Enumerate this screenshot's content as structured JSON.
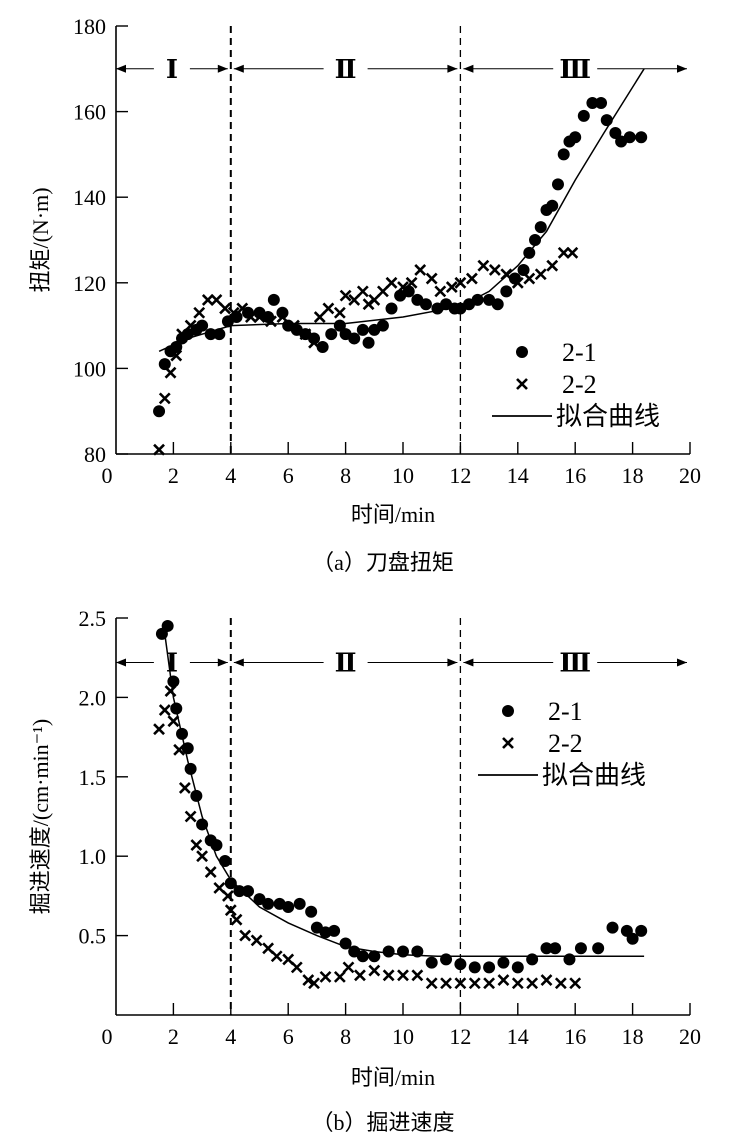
{
  "chart_data": [
    {
      "type": "scatter",
      "title": "",
      "caption": "（a）刀盘扭矩",
      "xlabel": "时间/min",
      "ylabel": "扭矩/(N·m)",
      "xlim": [
        0,
        20
      ],
      "ylim": [
        80,
        180
      ],
      "xticks": [
        "0",
        "2",
        "4",
        "6",
        "8",
        "10",
        "12",
        "14",
        "16",
        "18",
        "20"
      ],
      "yticks": [
        "80",
        "100",
        "120",
        "140",
        "160",
        "180"
      ],
      "grid": false,
      "legend_position": "bottom-right",
      "stages": {
        "boundaries": [
          4,
          12
        ],
        "labels": [
          "Ⅰ",
          "Ⅱ",
          "Ⅲ"
        ],
        "level": 170
      },
      "series": [
        {
          "name": "2-1",
          "marker": "circle",
          "points": [
            [
              1.5,
              90
            ],
            [
              1.7,
              101
            ],
            [
              1.9,
              104
            ],
            [
              2.1,
              105
            ],
            [
              2.3,
              107
            ],
            [
              2.5,
              108
            ],
            [
              2.8,
              109
            ],
            [
              3.0,
              110
            ],
            [
              3.3,
              108
            ],
            [
              3.6,
              108
            ],
            [
              3.9,
              111
            ],
            [
              4.2,
              112
            ],
            [
              4.6,
              113
            ],
            [
              5.0,
              113
            ],
            [
              5.3,
              112
            ],
            [
              5.5,
              116
            ],
            [
              5.8,
              113
            ],
            [
              6.0,
              110
            ],
            [
              6.3,
              109
            ],
            [
              6.6,
              108
            ],
            [
              6.9,
              107
            ],
            [
              7.2,
              105
            ],
            [
              7.5,
              108
            ],
            [
              7.8,
              110
            ],
            [
              8.0,
              108
            ],
            [
              8.3,
              107
            ],
            [
              8.6,
              109
            ],
            [
              8.8,
              106
            ],
            [
              9.0,
              109
            ],
            [
              9.3,
              110
            ],
            [
              9.6,
              114
            ],
            [
              9.9,
              117
            ],
            [
              10.2,
              118
            ],
            [
              10.5,
              116
            ],
            [
              10.8,
              115
            ],
            [
              11.2,
              114
            ],
            [
              11.5,
              115
            ],
            [
              11.8,
              114
            ],
            [
              12.0,
              114
            ],
            [
              12.3,
              115
            ],
            [
              12.6,
              116
            ],
            [
              13.0,
              116
            ],
            [
              13.3,
              115
            ],
            [
              13.6,
              118
            ],
            [
              13.9,
              121
            ],
            [
              14.2,
              123
            ],
            [
              14.4,
              127
            ],
            [
              14.6,
              130
            ],
            [
              14.8,
              133
            ],
            [
              15.0,
              137
            ],
            [
              15.2,
              138
            ],
            [
              15.4,
              143
            ],
            [
              15.6,
              150
            ],
            [
              15.8,
              153
            ],
            [
              16.0,
              154
            ],
            [
              16.3,
              159
            ],
            [
              16.6,
              162
            ],
            [
              16.9,
              162
            ],
            [
              17.1,
              158
            ],
            [
              17.4,
              155
            ],
            [
              17.6,
              153
            ],
            [
              17.9,
              154
            ],
            [
              18.3,
              154
            ]
          ]
        },
        {
          "name": "2-2",
          "marker": "x",
          "points": [
            [
              1.5,
              81
            ],
            [
              1.7,
              93
            ],
            [
              1.9,
              99
            ],
            [
              2.1,
              103
            ],
            [
              2.3,
              108
            ],
            [
              2.6,
              110
            ],
            [
              2.9,
              113
            ],
            [
              3.2,
              116
            ],
            [
              3.5,
              116
            ],
            [
              3.8,
              114
            ],
            [
              4.1,
              113
            ],
            [
              4.4,
              114
            ],
            [
              4.7,
              112
            ],
            [
              5.0,
              112
            ],
            [
              5.4,
              111
            ],
            [
              5.8,
              112
            ],
            [
              6.2,
              110
            ],
            [
              6.6,
              108
            ],
            [
              6.9,
              106
            ],
            [
              7.1,
              112
            ],
            [
              7.4,
              114
            ],
            [
              7.8,
              113
            ],
            [
              8.0,
              117
            ],
            [
              8.3,
              116
            ],
            [
              8.6,
              118
            ],
            [
              8.8,
              115
            ],
            [
              9.0,
              116
            ],
            [
              9.3,
              118
            ],
            [
              9.6,
              120
            ],
            [
              10.0,
              119
            ],
            [
              10.3,
              120
            ],
            [
              10.6,
              123
            ],
            [
              11.0,
              121
            ],
            [
              11.3,
              118
            ],
            [
              11.7,
              119
            ],
            [
              12.0,
              120
            ],
            [
              12.4,
              121
            ],
            [
              12.8,
              124
            ],
            [
              13.2,
              123
            ],
            [
              13.6,
              122
            ],
            [
              14.0,
              120
            ],
            [
              14.4,
              121
            ],
            [
              14.8,
              122
            ],
            [
              15.2,
              124
            ],
            [
              15.6,
              127
            ],
            [
              15.9,
              127
            ]
          ]
        },
        {
          "name": "拟合曲线",
          "marker": "line",
          "points": [
            [
              1.5,
              104
            ],
            [
              2.5,
              107
            ],
            [
              4,
              110
            ],
            [
              6,
              110.5
            ],
            [
              8,
              110.5
            ],
            [
              10,
              112
            ],
            [
              12,
              114.5
            ],
            [
              13,
              118
            ],
            [
              14,
              124
            ],
            [
              15,
              132
            ],
            [
              16,
              144
            ],
            [
              17,
              155
            ],
            [
              18.4,
              170
            ]
          ]
        }
      ]
    },
    {
      "type": "scatter",
      "title": "",
      "caption": "（b）掘进速度",
      "xlabel": "时间/min",
      "ylabel": "掘进速度/(cm·min⁻¹)",
      "xlim": [
        0,
        20
      ],
      "ylim": [
        0,
        2.5
      ],
      "xticks": [
        "0",
        "2",
        "4",
        "6",
        "8",
        "10",
        "12",
        "14",
        "16",
        "18",
        "20"
      ],
      "yticks": [
        "0.5",
        "1.0",
        "1.5",
        "2.0",
        "2.5"
      ],
      "grid": false,
      "legend_position": "top-right",
      "stages": {
        "boundaries": [
          4,
          12
        ],
        "labels": [
          "Ⅰ",
          "Ⅱ",
          "Ⅲ"
        ],
        "level": 2.22
      },
      "series": [
        {
          "name": "2-1",
          "marker": "circle",
          "points": [
            [
              1.6,
              2.4
            ],
            [
              1.8,
              2.45
            ],
            [
              2.0,
              2.1
            ],
            [
              2.1,
              1.93
            ],
            [
              2.3,
              1.77
            ],
            [
              2.5,
              1.68
            ],
            [
              2.6,
              1.55
            ],
            [
              2.8,
              1.38
            ],
            [
              3.0,
              1.2
            ],
            [
              3.3,
              1.1
            ],
            [
              3.5,
              1.07
            ],
            [
              3.8,
              0.97
            ],
            [
              4.0,
              0.83
            ],
            [
              4.3,
              0.78
            ],
            [
              4.6,
              0.78
            ],
            [
              5.0,
              0.73
            ],
            [
              5.3,
              0.7
            ],
            [
              5.7,
              0.7
            ],
            [
              6.0,
              0.68
            ],
            [
              6.4,
              0.7
            ],
            [
              6.8,
              0.65
            ],
            [
              7.0,
              0.55
            ],
            [
              7.3,
              0.52
            ],
            [
              7.6,
              0.53
            ],
            [
              8.0,
              0.45
            ],
            [
              8.3,
              0.4
            ],
            [
              8.6,
              0.37
            ],
            [
              9.0,
              0.37
            ],
            [
              9.5,
              0.4
            ],
            [
              10.0,
              0.4
            ],
            [
              10.5,
              0.4
            ],
            [
              11.0,
              0.33
            ],
            [
              11.5,
              0.35
            ],
            [
              12.0,
              0.32
            ],
            [
              12.5,
              0.3
            ],
            [
              13.0,
              0.3
            ],
            [
              13.5,
              0.33
            ],
            [
              14.0,
              0.3
            ],
            [
              14.5,
              0.35
            ],
            [
              15.0,
              0.42
            ],
            [
              15.3,
              0.42
            ],
            [
              15.8,
              0.35
            ],
            [
              16.2,
              0.42
            ],
            [
              16.8,
              0.42
            ],
            [
              17.3,
              0.55
            ],
            [
              17.8,
              0.53
            ],
            [
              18.0,
              0.48
            ],
            [
              18.3,
              0.53
            ]
          ]
        },
        {
          "name": "2-2",
          "marker": "x",
          "points": [
            [
              1.5,
              1.8
            ],
            [
              1.7,
              1.92
            ],
            [
              1.9,
              2.04
            ],
            [
              2.0,
              1.85
            ],
            [
              2.2,
              1.67
            ],
            [
              2.4,
              1.43
            ],
            [
              2.6,
              1.25
            ],
            [
              2.8,
              1.07
            ],
            [
              3.0,
              1.0
            ],
            [
              3.3,
              0.9
            ],
            [
              3.6,
              0.8
            ],
            [
              3.9,
              0.75
            ],
            [
              4.0,
              0.66
            ],
            [
              4.2,
              0.6
            ],
            [
              4.5,
              0.5
            ],
            [
              4.9,
              0.47
            ],
            [
              5.3,
              0.42
            ],
            [
              5.6,
              0.37
            ],
            [
              6.0,
              0.35
            ],
            [
              6.3,
              0.3
            ],
            [
              6.7,
              0.22
            ],
            [
              6.9,
              0.2
            ],
            [
              7.3,
              0.24
            ],
            [
              7.8,
              0.24
            ],
            [
              8.1,
              0.3
            ],
            [
              8.5,
              0.25
            ],
            [
              9.0,
              0.28
            ],
            [
              9.5,
              0.25
            ],
            [
              10.0,
              0.25
            ],
            [
              10.5,
              0.25
            ],
            [
              11.0,
              0.2
            ],
            [
              11.5,
              0.2
            ],
            [
              12.0,
              0.2
            ],
            [
              12.5,
              0.2
            ],
            [
              13.0,
              0.2
            ],
            [
              13.5,
              0.22
            ],
            [
              14.0,
              0.2
            ],
            [
              14.5,
              0.2
            ],
            [
              15.0,
              0.22
            ],
            [
              15.5,
              0.2
            ],
            [
              16.0,
              0.2
            ]
          ]
        },
        {
          "name": "拟合曲线",
          "marker": "line",
          "points": [
            [
              1.7,
              2.4
            ],
            [
              2.0,
              2.0
            ],
            [
              2.5,
              1.6
            ],
            [
              3.0,
              1.25
            ],
            [
              3.5,
              1.0
            ],
            [
              4.0,
              0.85
            ],
            [
              5.0,
              0.68
            ],
            [
              6.0,
              0.58
            ],
            [
              7.0,
              0.5
            ],
            [
              8.0,
              0.43
            ],
            [
              9.0,
              0.4
            ],
            [
              10.0,
              0.38
            ],
            [
              11.2,
              0.37
            ],
            [
              18.4,
              0.37
            ]
          ]
        }
      ]
    }
  ]
}
